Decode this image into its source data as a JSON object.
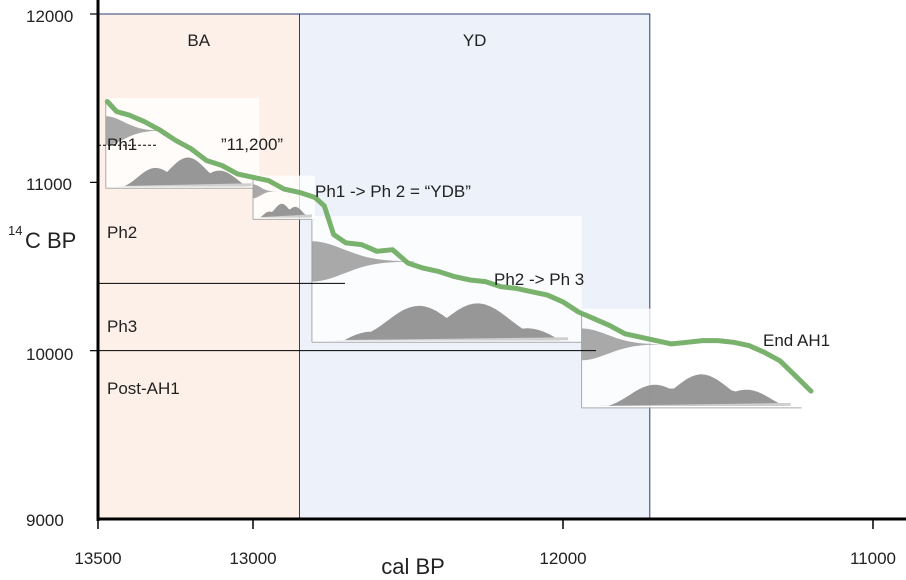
{
  "chart_data": {
    "type": "line",
    "xlabel": "cal BP",
    "ylabel_sup": "14",
    "ylabel_main": "C BP",
    "x_ticks": [
      "13500",
      "13000",
      "12000",
      "11000"
    ],
    "y_ticks": [
      "12000",
      "11000",
      "10000",
      "9000"
    ],
    "xlim": [
      13500,
      11000
    ],
    "ylim": [
      9000,
      12000
    ],
    "x_reversed": true,
    "grid": false,
    "regions": [
      {
        "label": "BA",
        "from": 13500,
        "to": 12850,
        "color": "#fdf0e8"
      },
      {
        "label": "YD",
        "from": 12850,
        "to": 11720,
        "color": "#ecf1fa"
      }
    ],
    "phases": [
      {
        "label": "Ph1",
        "y": 11220
      },
      {
        "label": "Ph2",
        "y": 10880
      },
      {
        "label": "Ph3",
        "y": 10400
      },
      {
        "label": "Post-AH1",
        "y": 10000
      }
    ],
    "annotations": [
      {
        "text": "”11,200”"
      },
      {
        "text": "Ph1 -> Ph 2 = “YDB”"
      },
      {
        "text": "Ph2 -> Ph 3"
      },
      {
        "text": "End AH1"
      }
    ],
    "series": [
      {
        "color": "#6aaa5c",
        "x": [
          13470,
          13440,
          13400,
          13350,
          13300,
          13250,
          13200,
          13150,
          13100,
          13050,
          13000,
          12950,
          12900,
          12850,
          12800,
          12770,
          12740,
          12700,
          12650,
          12600,
          12550,
          12500,
          12450,
          12400,
          12350,
          12300,
          12250,
          12200,
          12150,
          12100,
          12050,
          12000,
          11950,
          11900,
          11850,
          11800,
          11750,
          11700,
          11650,
          11600,
          11550,
          11500,
          11450,
          11400,
          11350,
          11300,
          11250,
          11200
        ],
        "y": [
          11480,
          11420,
          11400,
          11360,
          11310,
          11250,
          11200,
          11130,
          11100,
          11050,
          11030,
          11010,
          10960,
          10940,
          10910,
          10860,
          10690,
          10640,
          10630,
          10590,
          10600,
          10520,
          10490,
          10470,
          10440,
          10420,
          10410,
          10380,
          10370,
          10350,
          10330,
          10290,
          10230,
          10190,
          10150,
          10100,
          10080,
          10060,
          10040,
          10050,
          10060,
          10060,
          10050,
          10030,
          9990,
          9940,
          9850,
          9760
        ]
      }
    ],
    "calibration_insets": [
      {
        "x_from": 13475,
        "x_to": 12980,
        "y_top": 11500,
        "y_bottom": 10965
      },
      {
        "x_from": 13000,
        "x_to": 12800,
        "y_top": 11040,
        "y_bottom": 10780
      },
      {
        "x_from": 12810,
        "x_to": 11940,
        "y_top": 10800,
        "y_bottom": 10050
      },
      {
        "x_from": 11940,
        "x_to": 11230,
        "y_top": 10250,
        "y_bottom": 9660
      }
    ]
  }
}
